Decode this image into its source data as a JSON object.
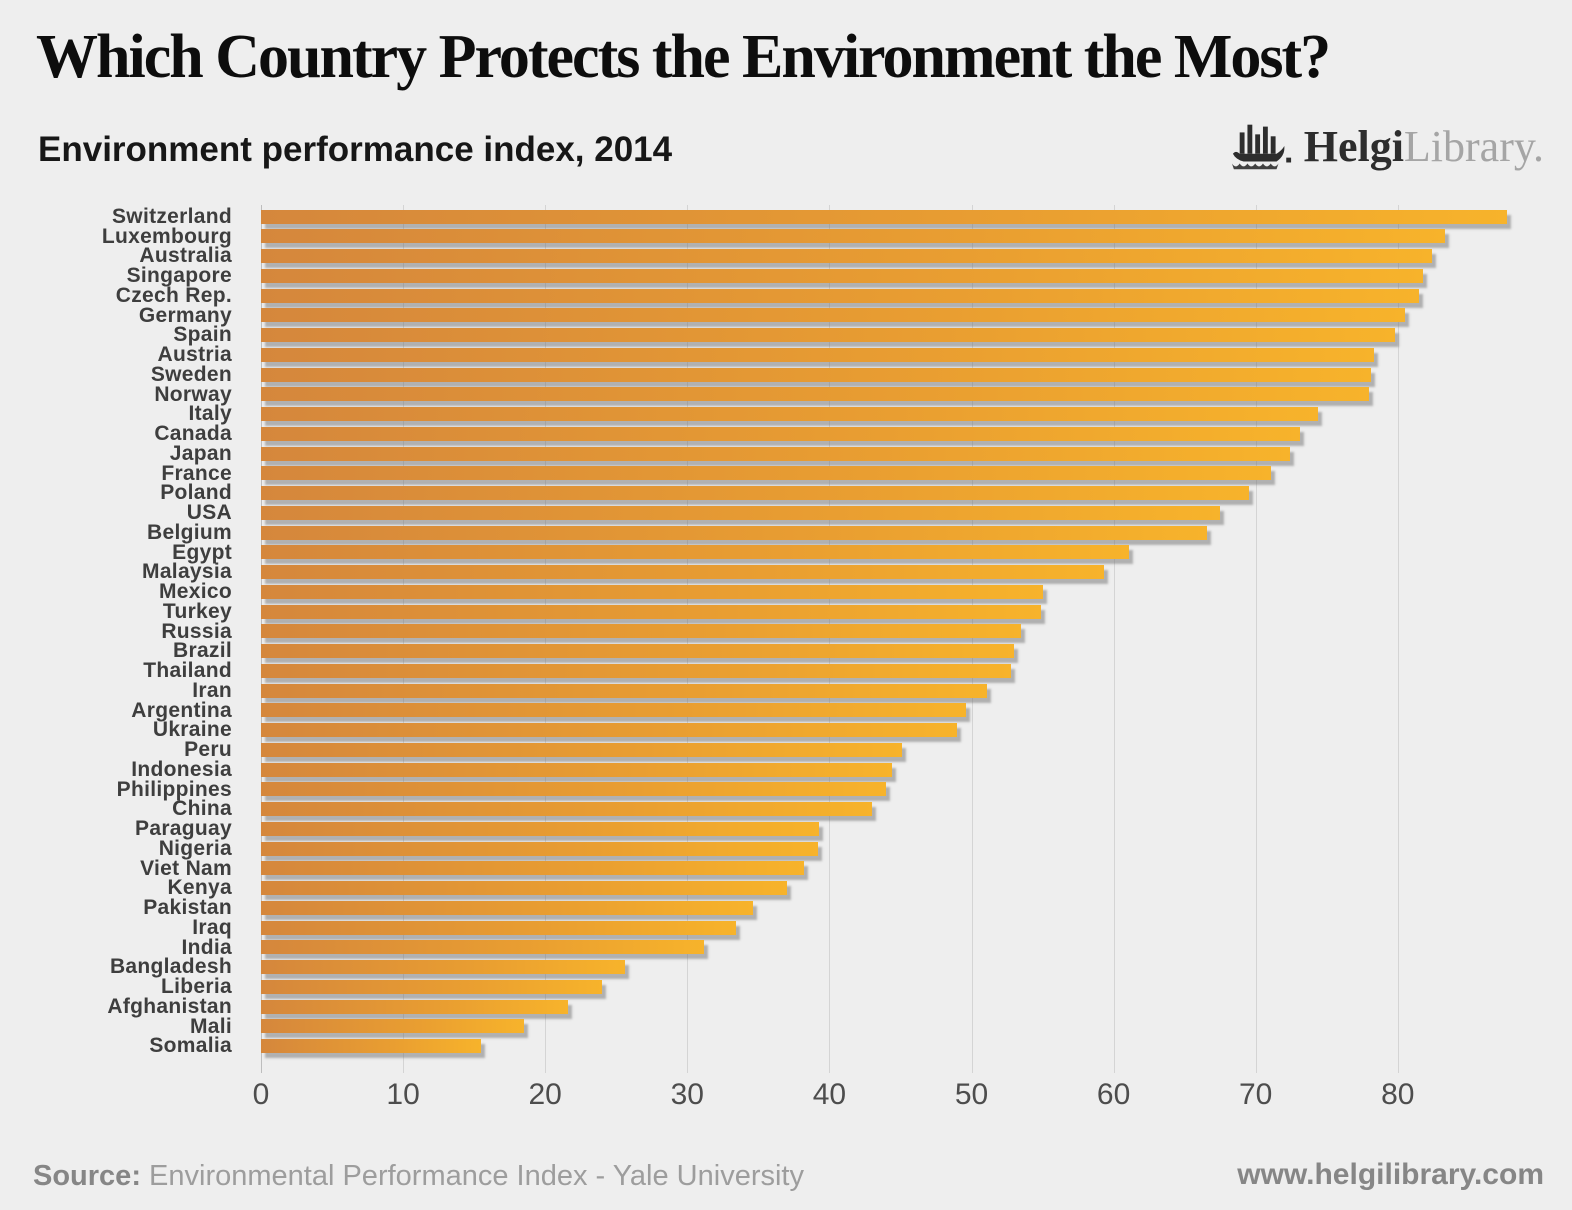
{
  "header": {
    "title": "Which Country Protects the Environment the Most?",
    "subtitle": "Environment performance index, 2014"
  },
  "logo": {
    "icon": "viking-ship-bar-chart-icon",
    "brand_primary": "Helgi",
    "brand_secondary": "Library."
  },
  "chart_data": {
    "type": "bar",
    "orientation": "horizontal",
    "title": "Which Country Protects the Environment the Most?",
    "subtitle": "Environment performance index, 2014",
    "categories": [
      "Switzerland",
      "Luxembourg",
      "Australia",
      "Singapore",
      "Czech Rep.",
      "Germany",
      "Spain",
      "Austria",
      "Sweden",
      "Norway",
      "Italy",
      "Canada",
      "Japan",
      "France",
      "Poland",
      "USA",
      "Belgium",
      "Egypt",
      "Malaysia",
      "Mexico",
      "Turkey",
      "Russia",
      "Brazil",
      "Thailand",
      "Iran",
      "Argentina",
      "Ukraine",
      "Peru",
      "Indonesia",
      "Philippines",
      "China",
      "Paraguay",
      "Nigeria",
      "Viet Nam",
      "Kenya",
      "Pakistan",
      "Iraq",
      "India",
      "Bangladesh",
      "Liberia",
      "Afghanistan",
      "Mali",
      "Somalia"
    ],
    "values": [
      87.7,
      83.3,
      82.4,
      81.8,
      81.5,
      80.5,
      79.8,
      78.3,
      78.1,
      78.0,
      74.4,
      73.1,
      72.4,
      71.1,
      69.5,
      67.5,
      66.6,
      61.1,
      59.3,
      55.0,
      54.9,
      53.5,
      53.0,
      52.8,
      51.1,
      49.6,
      49.0,
      45.1,
      44.4,
      44.0,
      43.0,
      39.3,
      39.2,
      38.2,
      37.0,
      34.6,
      33.4,
      31.2,
      25.6,
      24.0,
      21.6,
      18.5,
      15.5
    ],
    "xlabel": "",
    "ylabel": "",
    "xlim": [
      0,
      92
    ],
    "xticks": [
      0,
      10,
      20,
      30,
      40,
      50,
      60,
      70,
      80
    ],
    "grid": "vertical",
    "legend": "none",
    "bar_color_left": "#d5873c",
    "bar_color_right": "#f7b32b",
    "background_color": "#eeeeee"
  },
  "footer": {
    "source_label": "Source:",
    "source_text": " Environmental Performance Index - Yale University",
    "website": "www.helgilibrary.com"
  }
}
